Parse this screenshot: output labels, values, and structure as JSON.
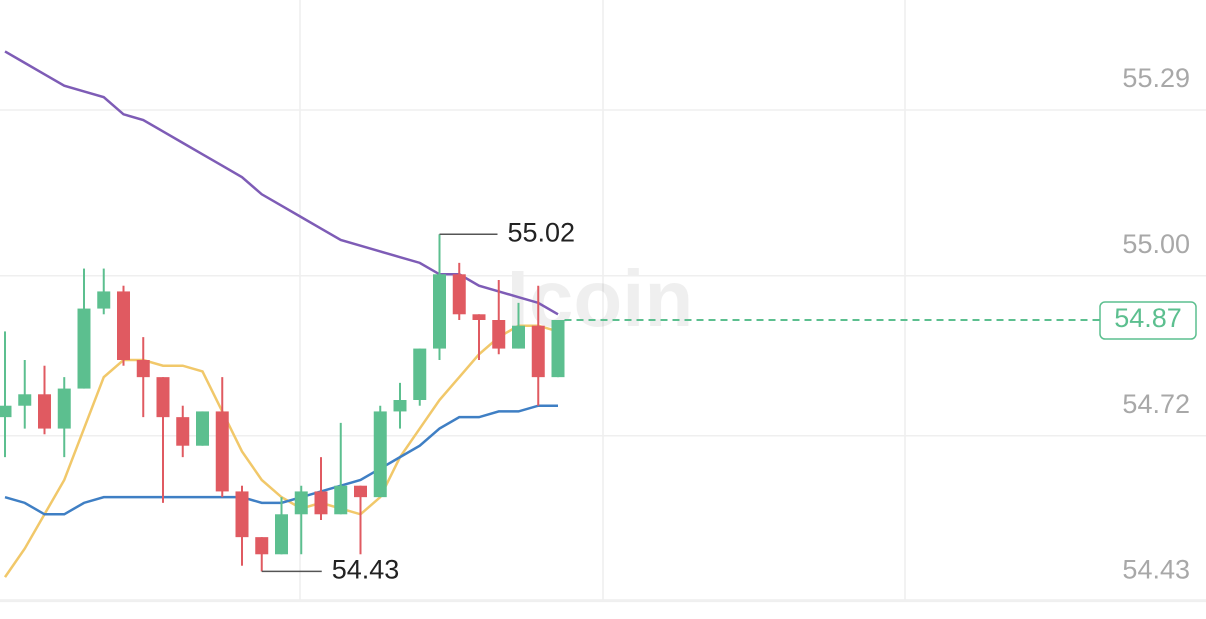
{
  "chart_data": {
    "type": "candlestick",
    "watermark": "Icoin",
    "open": [
      54.7,
      54.72,
      54.74,
      54.68,
      54.75,
      54.89,
      54.92,
      54.8,
      54.77,
      54.7,
      54.65,
      54.71,
      54.57,
      54.49,
      54.46,
      54.53,
      54.57,
      54.53,
      54.58,
      54.56,
      54.71,
      54.73,
      54.82,
      54.95,
      54.88,
      54.87,
      54.82,
      54.86,
      54.77
    ],
    "high": [
      54.85,
      54.8,
      54.79,
      54.77,
      54.96,
      54.96,
      54.93,
      54.84,
      54.77,
      54.72,
      54.71,
      54.77,
      54.58,
      54.49,
      54.56,
      54.58,
      54.63,
      54.69,
      54.58,
      54.72,
      54.76,
      54.82,
      55.02,
      54.97,
      54.88,
      54.94,
      54.9,
      54.93,
      54.87
    ],
    "low": [
      54.63,
      54.68,
      54.67,
      54.63,
      54.75,
      54.88,
      54.79,
      54.7,
      54.55,
      54.63,
      54.65,
      54.56,
      54.44,
      54.43,
      54.46,
      54.46,
      54.52,
      54.53,
      54.46,
      54.56,
      54.68,
      54.72,
      54.8,
      54.87,
      54.8,
      54.81,
      54.82,
      54.72,
      54.77
    ],
    "close": [
      54.72,
      54.74,
      54.68,
      54.75,
      54.89,
      54.92,
      54.8,
      54.77,
      54.7,
      54.65,
      54.71,
      54.57,
      54.49,
      54.46,
      54.53,
      54.57,
      54.53,
      54.58,
      54.56,
      54.71,
      54.73,
      54.82,
      54.95,
      54.88,
      54.87,
      54.82,
      54.86,
      54.77,
      54.87
    ],
    "up_color": "#5cbf8f",
    "down_color": "#e05a61",
    "series": [
      {
        "color": "#7e5cb6",
        "values": [
          55.34,
          55.32,
          55.3,
          55.28,
          55.27,
          55.26,
          55.23,
          55.22,
          55.2,
          55.18,
          55.16,
          55.14,
          55.12,
          55.09,
          55.07,
          55.05,
          55.03,
          55.01,
          55.0,
          54.99,
          54.98,
          54.97,
          54.95,
          54.95,
          54.93,
          54.92,
          54.91,
          54.9,
          54.88
        ]
      },
      {
        "color": "#f1c86a",
        "values": [
          54.42,
          54.47,
          54.53,
          54.59,
          54.68,
          54.77,
          54.8,
          54.8,
          54.79,
          54.79,
          54.78,
          54.71,
          54.64,
          54.59,
          54.56,
          54.54,
          54.55,
          54.54,
          54.53,
          54.56,
          54.63,
          54.68,
          54.73,
          54.77,
          54.81,
          54.84,
          54.86,
          54.86,
          54.85
        ]
      },
      {
        "color": "#3f7fc4",
        "values": [
          54.56,
          54.55,
          54.53,
          54.53,
          54.55,
          54.56,
          54.56,
          54.56,
          54.56,
          54.56,
          54.56,
          54.56,
          54.56,
          54.55,
          54.55,
          54.56,
          54.57,
          54.58,
          54.59,
          54.61,
          54.63,
          54.65,
          54.68,
          54.7,
          54.7,
          54.71,
          54.71,
          54.72,
          54.72
        ]
      }
    ],
    "high_label": 55.02,
    "low_label": 54.43,
    "last_price": 54.87,
    "ylim": [
      54.38,
      55.43
    ],
    "yticks": [
      54.43,
      54.72,
      {
        "value": 55,
        "label": "55.00"
      },
      55.29
    ],
    "grid": true
  }
}
